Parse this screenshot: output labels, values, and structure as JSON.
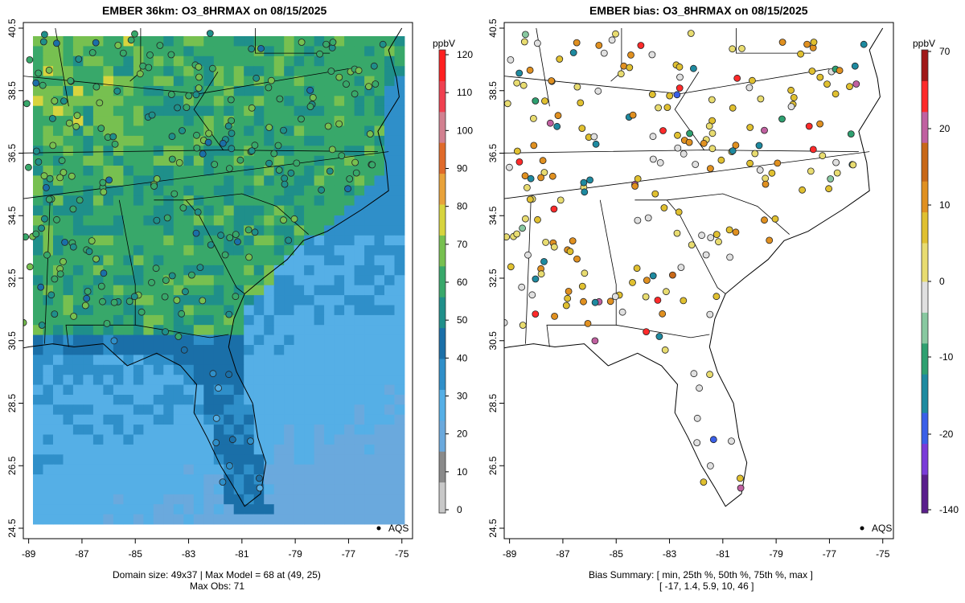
{
  "left_panel": {
    "title": "EMBER 36km: O3_8HRMAX on 08/15/2025",
    "caption_line1": "Domain size: 49x37 | Max Model = 68 at (49, 25)",
    "caption_line2": "Max Obs: 71",
    "legend_label": "AQS",
    "colorbar_unit": "ppbV",
    "colorbar_ticks": [
      "120",
      "110",
      "100",
      "90",
      "80",
      "70",
      "60",
      "50",
      "40",
      "30",
      "20",
      "10",
      "0"
    ]
  },
  "right_panel": {
    "title": "EMBER bias: O3_8HRMAX on 08/15/2025",
    "caption_line1": "Bias Summary: [ min, 25th %, 50th %, 75th %, max ]",
    "caption_line2": "[ -17,   1.4,   5.9,   10,   46 ]",
    "legend_label": "AQS",
    "colorbar_unit": "ppbV",
    "colorbar_ticks": [
      "70",
      "20",
      "10",
      "0",
      "-10",
      "-20",
      "-140"
    ]
  },
  "axes": {
    "x_ticks": [
      "-89",
      "-87",
      "-85",
      "-83",
      "-81",
      "-79",
      "-77",
      "-75"
    ],
    "y_ticks": [
      "40.5",
      "38.5",
      "36.5",
      "34.5",
      "32.5",
      "30.5",
      "28.5",
      "26.5",
      "24.5"
    ],
    "lon_range": [
      -89.2,
      -74.6
    ],
    "lat_range": [
      24.5,
      40.5
    ]
  },
  "colors": {
    "concentration_scale": [
      "#c8c8c8",
      "#8a8a8a",
      "#6aa9dd",
      "#55afe6",
      "#2f8fc9",
      "#1a6fa8",
      "#1f8f8a",
      "#38a86a",
      "#77c050",
      "#d7d43e",
      "#e8a23a",
      "#e06a2a",
      "#d28090",
      "#f04050",
      "#ff2020"
    ],
    "bias_scale": [
      "#5a1e8c",
      "#7a3bd8",
      "#3a5fe8",
      "#1e8aa0",
      "#2ea070",
      "#88c8a0",
      "#e0e0e0",
      "#e8dc70",
      "#e0c030",
      "#e09020",
      "#c86818",
      "#c060a0",
      "#ff2a2a",
      "#a01818"
    ],
    "land_outline": "#000000"
  }
}
